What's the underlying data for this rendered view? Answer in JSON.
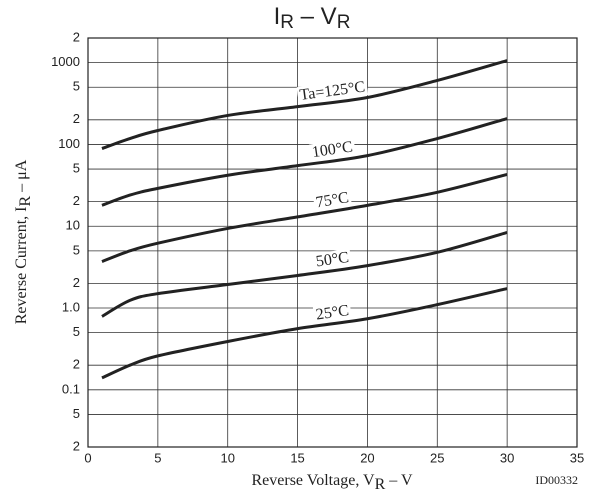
{
  "chart_data": {
    "type": "line",
    "title": [
      "I",
      "R",
      " – V",
      "R"
    ],
    "xlabel": [
      "Reverse Voltage, V",
      "R",
      " – V"
    ],
    "ylabel": [
      "Reverse Current, I",
      "R",
      " – μA"
    ],
    "code": "ID00332",
    "log_y": true,
    "grid": true,
    "color": "#222222",
    "xlim": [
      0,
      35
    ],
    "xticks": [
      0,
      5,
      10,
      15,
      20,
      25,
      30,
      35
    ],
    "ylim": [
      0.02,
      2000
    ],
    "yticks": [
      {
        "value": 0.02,
        "label": "2"
      },
      {
        "value": 0.05,
        "label": "5"
      },
      0.1,
      {
        "value": 0.2,
        "label": "2"
      },
      {
        "value": 0.5,
        "label": "5"
      },
      {
        "value": 1,
        "label": "1.0"
      },
      2,
      5,
      10,
      {
        "value": 20,
        "label": "2"
      },
      {
        "value": 50,
        "label": "5"
      },
      100,
      {
        "value": 200,
        "label": "2"
      },
      {
        "value": 500,
        "label": "5"
      },
      1000,
      {
        "value": 2000,
        "label": "2"
      }
    ],
    "x": [
      1,
      3,
      5,
      10,
      15,
      20,
      25,
      30
    ],
    "series": [
      {
        "name": "Ta=125°C",
        "color": "#222222",
        "values": [
          89,
          118,
          148,
          226,
          290,
          375,
          605,
          1060
        ]
      },
      {
        "name": "100°C",
        "color": "#222222",
        "values": [
          18,
          24,
          29,
          42,
          55,
          73,
          118,
          207
        ]
      },
      {
        "name": "75°C",
        "color": "#222222",
        "values": [
          3.7,
          5,
          6.2,
          9.4,
          13,
          18,
          26,
          43
        ]
      },
      {
        "name": "50°C",
        "color": "#222222",
        "values": [
          0.79,
          1.24,
          1.5,
          1.94,
          2.5,
          3.3,
          4.8,
          8.4
        ]
      },
      {
        "name": "25°C",
        "color": "#222222",
        "values": [
          0.14,
          0.2,
          0.26,
          0.39,
          0.56,
          0.74,
          1.1,
          1.73
        ]
      }
    ]
  }
}
